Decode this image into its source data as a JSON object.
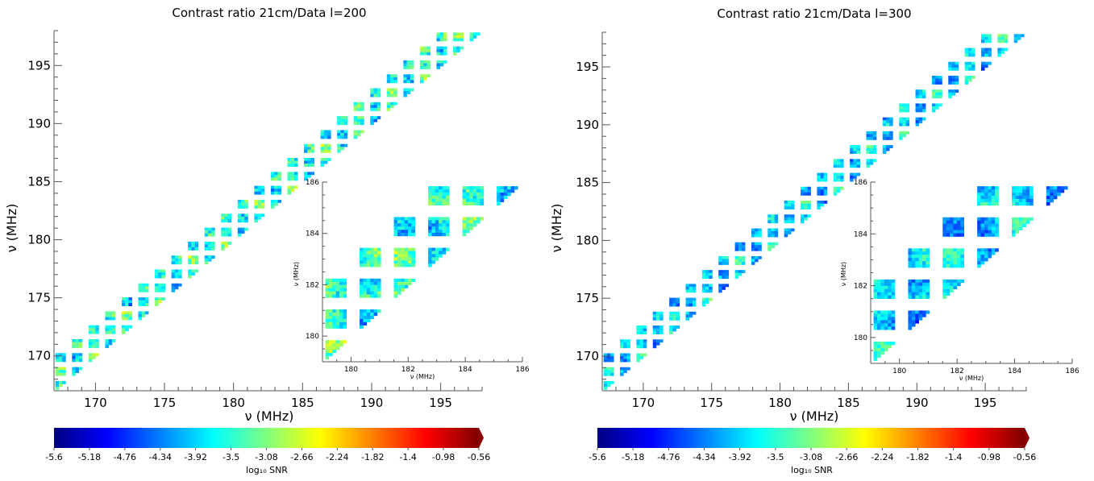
{
  "chart_data": [
    {
      "type": "heatmap",
      "title": "Contrast ratio 21cm/Data l=200",
      "xlabel": "ν (MHz)",
      "ylabel": "ν (MHz)",
      "xlim": [
        167,
        198
      ],
      "ylim": [
        167,
        198
      ],
      "xticks": [
        "170",
        "175",
        "180",
        "185",
        "190",
        "195"
      ],
      "yticks": [
        "170",
        "175",
        "180",
        "185",
        "190",
        "195"
      ],
      "blocks": {
        "start": 167.1,
        "size": 0.74,
        "gap": 0.46,
        "count": 26,
        "offdiag": 3
      },
      "field": "l200",
      "inset": {
        "xlim": [
          179,
          186
        ],
        "ylim": [
          179,
          186
        ],
        "xlabel": "ν (MHz)",
        "ylabel": "ν (MHz)",
        "xticks": [
          "180",
          "182",
          "184",
          "186"
        ],
        "yticks": [
          "180",
          "182",
          "184",
          "186"
        ]
      },
      "colorbar": {
        "label": "log₁₀ SNR",
        "ticks": [
          "-5.6",
          "-5.18",
          "-4.76",
          "-4.34",
          "-3.92",
          "-3.5",
          "-3.08",
          "-2.66",
          "-2.24",
          "-1.82",
          "-1.4",
          "-0.98",
          "-0.56"
        ],
        "vmin": -5.6,
        "vmax": -0.56,
        "extend": "max",
        "colormap": "jet"
      }
    },
    {
      "type": "heatmap",
      "title": "Contrast ratio 21cm/Data l=300",
      "xlabel": "ν (MHz)",
      "ylabel": "ν (MHz)",
      "xlim": [
        167,
        198
      ],
      "ylim": [
        167,
        198
      ],
      "xticks": [
        "170",
        "175",
        "180",
        "185",
        "190",
        "195"
      ],
      "yticks": [
        "170",
        "175",
        "180",
        "185",
        "190",
        "195"
      ],
      "blocks": {
        "start": 167.1,
        "size": 0.74,
        "gap": 0.46,
        "count": 26,
        "offdiag": 3
      },
      "field": "l300",
      "inset": {
        "xlim": [
          179,
          186
        ],
        "ylim": [
          179,
          186
        ],
        "xlabel": "ν (MHz)",
        "ylabel": "ν (MHz)",
        "xticks": [
          "180",
          "182",
          "184",
          "186"
        ],
        "yticks": [
          "180",
          "182",
          "184",
          "186"
        ]
      },
      "colorbar": {
        "label": "log₁₀ SNR",
        "ticks": [
          "-5.6",
          "-5.18",
          "-4.76",
          "-4.34",
          "-3.92",
          "-3.5",
          "-3.08",
          "-2.66",
          "-2.24",
          "-1.82",
          "-1.4",
          "-0.98",
          "-0.56"
        ],
        "vmin": -5.6,
        "vmax": -0.56,
        "extend": "max",
        "colormap": "jet"
      }
    }
  ]
}
